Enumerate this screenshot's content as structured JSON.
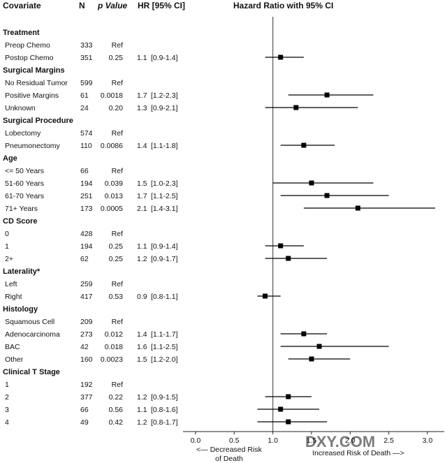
{
  "headers": {
    "covariate": "Covariate",
    "n": "N",
    "p_value": "p Value",
    "hr": "HR [95% CI]",
    "plot": "Hazard Ratio with 95% CI"
  },
  "watermark": "DXY.COM",
  "axis_notes": {
    "left": [
      "<— Decreased Risk",
      "of Death"
    ],
    "right": "Increased Risk of Death —>"
  },
  "colors": {
    "marker": "#000000",
    "line": "#000000",
    "ref_line": "#555555"
  },
  "chart_data": {
    "type": "forest",
    "title": "Hazard Ratio with 95% CI",
    "xlim": [
      0.0,
      3.0
    ],
    "xticks": [
      "0.0",
      "0.5",
      "1.0",
      "1.5",
      "2.0",
      "2.5",
      "3.0"
    ],
    "reference_value": 1.0,
    "groups": [
      {
        "name": "Treatment",
        "rows": [
          {
            "label": "Preop Chemo",
            "n": "333",
            "p": "Ref",
            "hr_text": "",
            "ci_text": "",
            "hr": null,
            "lo": null,
            "hi": null
          },
          {
            "label": "Postop Chemo",
            "n": "351",
            "p": "0.25",
            "hr_text": "1.1",
            "ci_text": "[0.9-1.4]",
            "hr": 1.1,
            "lo": 0.9,
            "hi": 1.4
          }
        ]
      },
      {
        "name": "Surgical Margins",
        "rows": [
          {
            "label": "No Residual Tumor",
            "n": "599",
            "p": "Ref",
            "hr_text": "",
            "ci_text": "",
            "hr": null,
            "lo": null,
            "hi": null
          },
          {
            "label": "Positive Margins",
            "n": "61",
            "p": "0.0018",
            "hr_text": "1.7",
            "ci_text": "[1.2-2.3]",
            "hr": 1.7,
            "lo": 1.2,
            "hi": 2.3
          },
          {
            "label": "Unknown",
            "n": "24",
            "p": "0.20",
            "hr_text": "1.3",
            "ci_text": "[0.9-2.1]",
            "hr": 1.3,
            "lo": 0.9,
            "hi": 2.1
          }
        ]
      },
      {
        "name": "Surgical Procedure",
        "rows": [
          {
            "label": "Lobectomy",
            "n": "574",
            "p": "Ref",
            "hr_text": "",
            "ci_text": "",
            "hr": null,
            "lo": null,
            "hi": null
          },
          {
            "label": "Pneumonectomy",
            "n": "110",
            "p": "0.0086",
            "hr_text": "1.4",
            "ci_text": "[1.1-1.8]",
            "hr": 1.4,
            "lo": 1.1,
            "hi": 1.8
          }
        ]
      },
      {
        "name": "Age",
        "rows": [
          {
            "label": "<= 50 Years",
            "n": "66",
            "p": "Ref",
            "hr_text": "",
            "ci_text": "",
            "hr": null,
            "lo": null,
            "hi": null
          },
          {
            "label": "51-60 Years",
            "n": "194",
            "p": "0.039",
            "hr_text": "1.5",
            "ci_text": "[1.0-2.3]",
            "hr": 1.5,
            "lo": 1.0,
            "hi": 2.3
          },
          {
            "label": "61-70 Years",
            "n": "251",
            "p": "0.013",
            "hr_text": "1.7",
            "ci_text": "[1.1-2.5]",
            "hr": 1.7,
            "lo": 1.1,
            "hi": 2.5
          },
          {
            "label": "71+ Years",
            "n": "173",
            "p": "0.0005",
            "hr_text": "2.1",
            "ci_text": "[1.4-3.1]",
            "hr": 2.1,
            "lo": 1.4,
            "hi": 3.1
          }
        ]
      },
      {
        "name": "CD Score",
        "rows": [
          {
            "label": "0",
            "n": "428",
            "p": "Ref",
            "hr_text": "",
            "ci_text": "",
            "hr": null,
            "lo": null,
            "hi": null
          },
          {
            "label": "1",
            "n": "194",
            "p": "0.25",
            "hr_text": "1.1",
            "ci_text": "[0.9-1.4]",
            "hr": 1.1,
            "lo": 0.9,
            "hi": 1.4
          },
          {
            "label": "2+",
            "n": "62",
            "p": "0.25",
            "hr_text": "1.2",
            "ci_text": "[0.9-1.7]",
            "hr": 1.2,
            "lo": 0.9,
            "hi": 1.7
          }
        ]
      },
      {
        "name": "Laterality*",
        "rows": [
          {
            "label": "Left",
            "n": "259",
            "p": "Ref",
            "hr_text": "",
            "ci_text": "",
            "hr": null,
            "lo": null,
            "hi": null
          },
          {
            "label": "Right",
            "n": "417",
            "p": "0.53",
            "hr_text": "0.9",
            "ci_text": "[0.8-1.1]",
            "hr": 0.9,
            "lo": 0.8,
            "hi": 1.1
          }
        ]
      },
      {
        "name": "Histology",
        "rows": [
          {
            "label": "Squamous Cell",
            "n": "209",
            "p": "Ref",
            "hr_text": "",
            "ci_text": "",
            "hr": null,
            "lo": null,
            "hi": null
          },
          {
            "label": "Adenocarcinoma",
            "n": "273",
            "p": "0.012",
            "hr_text": "1.4",
            "ci_text": "[1.1-1.7]",
            "hr": 1.4,
            "lo": 1.1,
            "hi": 1.7
          },
          {
            "label": "BAC",
            "n": "42",
            "p": "0.018",
            "hr_text": "1.6",
            "ci_text": "[1.1-2.5]",
            "hr": 1.6,
            "lo": 1.1,
            "hi": 2.5
          },
          {
            "label": "Other",
            "n": "160",
            "p": "0.0023",
            "hr_text": "1.5",
            "ci_text": "[1.2-2.0]",
            "hr": 1.5,
            "lo": 1.2,
            "hi": 2.0
          }
        ]
      },
      {
        "name": "Clinical T Stage",
        "rows": [
          {
            "label": "1",
            "n": "192",
            "p": "Ref",
            "hr_text": "",
            "ci_text": "",
            "hr": null,
            "lo": null,
            "hi": null
          },
          {
            "label": "2",
            "n": "377",
            "p": "0.22",
            "hr_text": "1.2",
            "ci_text": "[0.9-1.5]",
            "hr": 1.2,
            "lo": 0.9,
            "hi": 1.5
          },
          {
            "label": "3",
            "n": "66",
            "p": "0.56",
            "hr_text": "1.1",
            "ci_text": "[0.8-1.6]",
            "hr": 1.1,
            "lo": 0.8,
            "hi": 1.6
          },
          {
            "label": "4",
            "n": "49",
            "p": "0.42",
            "hr_text": "1.2",
            "ci_text": "[0.8-1.7]",
            "hr": 1.2,
            "lo": 0.8,
            "hi": 1.7
          }
        ]
      }
    ]
  }
}
